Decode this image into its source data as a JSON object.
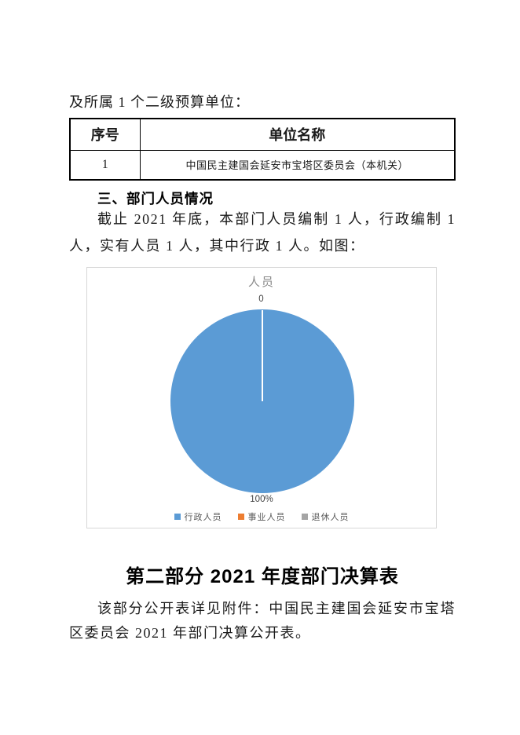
{
  "intro": {
    "text": "及所属 1 个二级预算单位："
  },
  "units_table": {
    "headers": [
      "序号",
      "单位名称"
    ],
    "rows": [
      [
        "1",
        "中国民主建国会延安市宝塔区委员会（本机关）"
      ]
    ]
  },
  "section_personnel": {
    "heading": "三、部门人员情况",
    "paragraph": "截止 2021 年底，本部门人员编制 1 人，行政编制 1 人，实有人员 1 人，其中行政 1 人。如图："
  },
  "chart_data": {
    "type": "pie",
    "title": "人员",
    "categories": [
      "行政人员",
      "事业人员",
      "退休人员"
    ],
    "values": [
      1,
      0,
      0
    ],
    "percentages": [
      "100%",
      "0",
      "0"
    ],
    "label_top": "0",
    "label_bottom": "100%",
    "pie_color": "#5B9BD5",
    "legend_position": "bottom",
    "legend": [
      {
        "label": "行政人员",
        "color": "#5B9BD5"
      },
      {
        "label": "事业人员",
        "color": "#ED7D31"
      },
      {
        "label": "退休人员",
        "color": "#A5A5A5"
      }
    ]
  },
  "part2": {
    "heading": "第二部分  2021 年度部门决算表",
    "paragraph": "该部分公开表详见附件：中国民主建国会延安市宝塔区委员会 2021 年部门决算公开表。"
  }
}
